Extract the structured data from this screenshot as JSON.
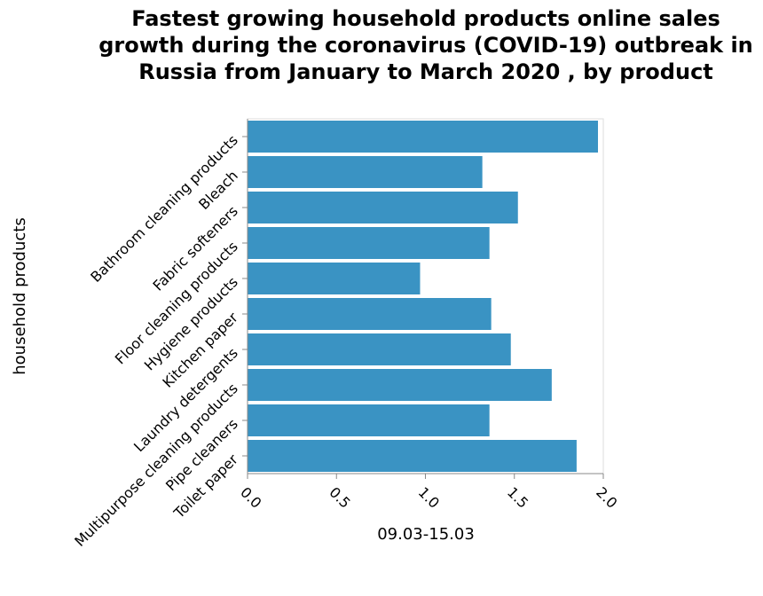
{
  "colors": {
    "bar": "#3a93c3",
    "axis": "#888888",
    "frame": "#dddddd",
    "text": "#000000"
  },
  "chart_data": {
    "type": "bar",
    "orientation": "horizontal",
    "title": "Fastest growing household products online sales growth during the coronavirus (COVID-19) outbreak in Russia from January to March 2020 , by product",
    "xlabel": "09.03-15.03",
    "ylabel": "household products",
    "xlim": [
      0,
      2.0
    ],
    "xticks": [
      "0.0",
      "0.5",
      "1.0",
      "1.5",
      "2.0"
    ],
    "grid": false,
    "categories": [
      "Bathroom cleaning products",
      "Bleach",
      "Fabric softeners",
      "Floor cleaning products",
      "Hygiene products",
      "Kitchen paper",
      "Laundry detergents",
      "Multipurpose cleaning products",
      "Pipe cleaners",
      "Toilet paper"
    ],
    "values": [
      1.97,
      1.32,
      1.52,
      1.36,
      0.97,
      1.37,
      1.48,
      1.71,
      1.36,
      1.85
    ]
  }
}
